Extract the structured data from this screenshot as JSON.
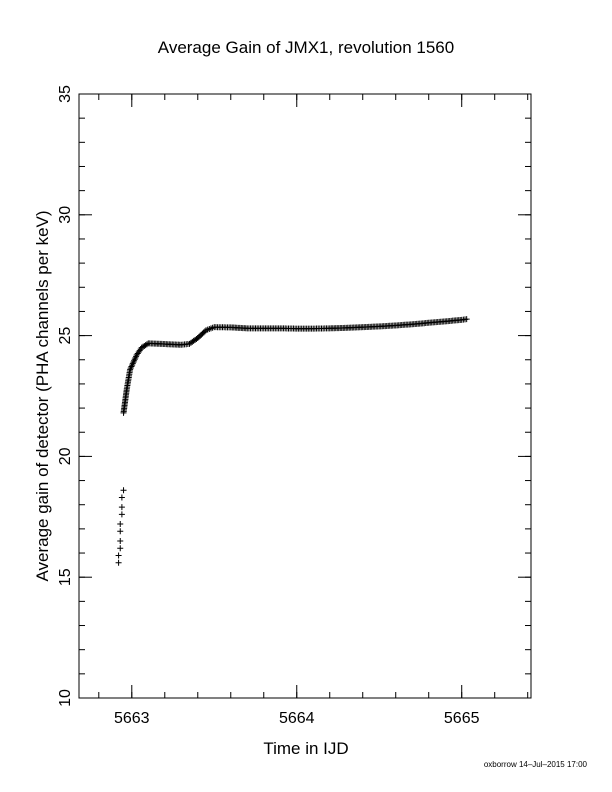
{
  "chart_data": {
    "type": "scatter",
    "title": "Average Gain of JMX1, revolution 1560",
    "xlabel": "Time in IJD",
    "ylabel": "Average gain of detector (PHA channels per keV)",
    "xlim": [
      5662.68,
      5665.42
    ],
    "ylim": [
      10,
      35
    ],
    "xticks": [
      5663,
      5664,
      5665
    ],
    "xtick_labels": [
      "5663",
      "5664",
      "5665"
    ],
    "yticks": [
      10,
      15,
      20,
      25,
      30,
      35
    ],
    "ytick_labels": [
      "10",
      "15",
      "20",
      "25",
      "30",
      "35"
    ],
    "x_minor_step": 0.2,
    "y_minor_step": 1,
    "marker": "+",
    "grid": false,
    "series": [
      {
        "points": [
          [
            5662.92,
            15.6
          ],
          [
            5662.92,
            15.9
          ],
          [
            5662.93,
            16.2
          ],
          [
            5662.93,
            16.5
          ],
          [
            5662.93,
            16.9
          ],
          [
            5662.93,
            17.2
          ],
          [
            5662.94,
            17.6
          ],
          [
            5662.94,
            17.9
          ],
          [
            5662.94,
            18.3
          ],
          [
            5662.95,
            18.6
          ],
          [
            5662.95,
            21.8
          ],
          [
            5662.96,
            22.3
          ],
          [
            5662.97,
            22.8
          ],
          [
            5662.98,
            23.2
          ],
          [
            5662.99,
            23.6
          ],
          [
            5663.01,
            23.9
          ],
          [
            5663.03,
            24.2
          ],
          [
            5663.06,
            24.5
          ],
          [
            5663.1,
            24.68
          ],
          [
            5663.2,
            24.65
          ],
          [
            5663.3,
            24.62
          ],
          [
            5663.35,
            24.66
          ],
          [
            5663.4,
            24.9
          ],
          [
            5663.45,
            25.22
          ],
          [
            5663.5,
            25.35
          ],
          [
            5663.6,
            25.34
          ],
          [
            5663.7,
            25.3
          ],
          [
            5663.8,
            25.3
          ],
          [
            5663.9,
            25.3
          ],
          [
            5664.0,
            25.29
          ],
          [
            5664.1,
            25.29
          ],
          [
            5664.2,
            25.3
          ],
          [
            5664.3,
            25.32
          ],
          [
            5664.4,
            25.35
          ],
          [
            5664.5,
            25.38
          ],
          [
            5664.6,
            25.42
          ],
          [
            5664.7,
            25.47
          ],
          [
            5664.8,
            25.53
          ],
          [
            5664.9,
            25.59
          ],
          [
            5665.0,
            25.65
          ],
          [
            5665.03,
            25.68
          ]
        ]
      }
    ],
    "footer": "oxborrow 14–Jul–2015 17:00"
  }
}
